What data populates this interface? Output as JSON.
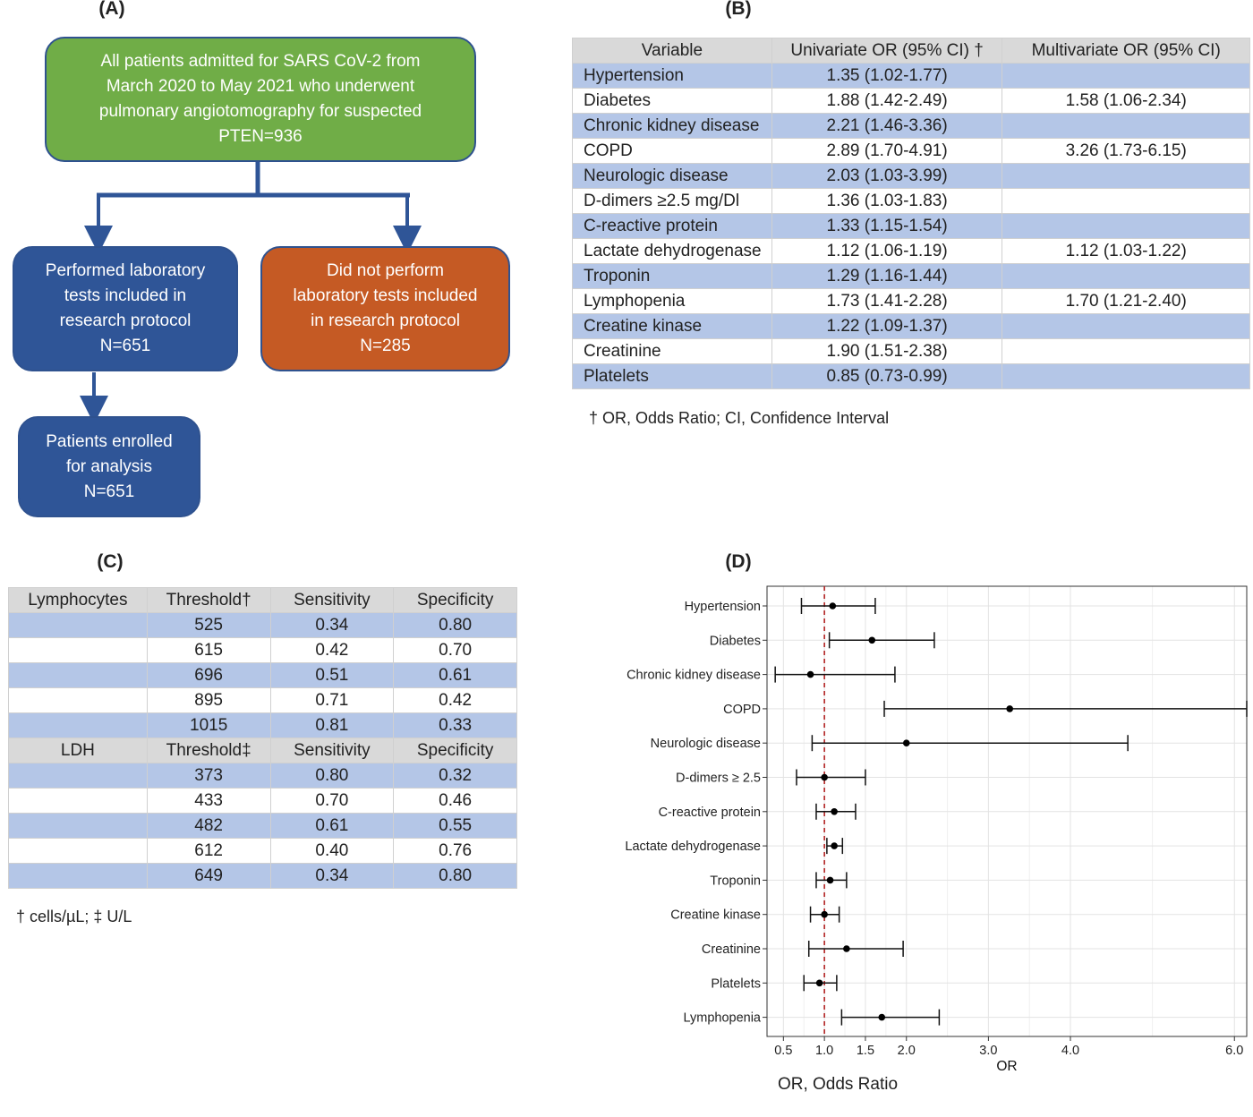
{
  "panels": {
    "a": "(A)",
    "b": "(B)",
    "c": "(C)",
    "d": "(D)"
  },
  "flowchart": {
    "top": [
      "All patients admitted for SARS CoV-2 from",
      "March 2020 to May 2021 who underwent",
      "pulmonary angiotomography for suspected",
      "PTEN=936"
    ],
    "left": [
      "Performed laboratory",
      "tests included in",
      "research protocol",
      "N=651"
    ],
    "right": [
      "Did not perform",
      "laboratory tests included",
      "in research protocol",
      "N=285"
    ],
    "bottom": [
      "Patients enrolled",
      "for analysis",
      "N=651"
    ]
  },
  "table_b": {
    "headers": [
      "Variable",
      "Univariate OR (95% CI) †",
      "Multivariate OR (95% CI)"
    ],
    "rows": [
      [
        "Hypertension",
        "1.35 (1.02-1.77)",
        ""
      ],
      [
        "Diabetes",
        "1.88 (1.42-2.49)",
        "1.58 (1.06-2.34)"
      ],
      [
        "Chronic kidney disease",
        "2.21 (1.46-3.36)",
        ""
      ],
      [
        "COPD",
        "2.89 (1.70-4.91)",
        "3.26 (1.73-6.15)"
      ],
      [
        "Neurologic disease",
        "2.03 (1.03-3.99)",
        ""
      ],
      [
        "D-dimers ≥2.5 mg/Dl",
        "1.36 (1.03-1.83)",
        ""
      ],
      [
        "C-reactive protein",
        "1.33 (1.15-1.54)",
        ""
      ],
      [
        "Lactate dehydrogenase",
        "1.12 (1.06-1.19)",
        "1.12 (1.03-1.22)"
      ],
      [
        "Troponin",
        "1.29 (1.16-1.44)",
        ""
      ],
      [
        "Lymphopenia",
        "1.73 (1.41-2.28)",
        "1.70 (1.21-2.40)"
      ],
      [
        "Creatine kinase",
        "1.22 (1.09-1.37)",
        ""
      ],
      [
        "Creatinine",
        "1.90 (1.51-2.38)",
        ""
      ],
      [
        "Platelets",
        "0.85 (0.73-0.99)",
        ""
      ]
    ],
    "footnote": "† OR, Odds Ratio; CI, Confidence Interval"
  },
  "table_c": {
    "sections": [
      {
        "headers": [
          "Lymphocytes",
          "Threshold†",
          "Sensitivity",
          "Specificity"
        ],
        "rows": [
          [
            "",
            "525",
            "0.34",
            "0.80"
          ],
          [
            "",
            "615",
            "0.42",
            "0.70"
          ],
          [
            "",
            "696",
            "0.51",
            "0.61"
          ],
          [
            "",
            "895",
            "0.71",
            "0.42"
          ],
          [
            "",
            "1015",
            "0.81",
            "0.33"
          ]
        ]
      },
      {
        "headers": [
          "LDH",
          "Threshold‡",
          "Sensitivity",
          "Specificity"
        ],
        "rows": [
          [
            "",
            "373",
            "0.80",
            "0.32"
          ],
          [
            "",
            "433",
            "0.70",
            "0.46"
          ],
          [
            "",
            "482",
            "0.61",
            "0.55"
          ],
          [
            "",
            "612",
            "0.40",
            "0.76"
          ],
          [
            "",
            "649",
            "0.34",
            "0.80"
          ]
        ]
      }
    ],
    "footnote": "† cells/µL; ‡ U/L"
  },
  "chart_data": {
    "type": "scatter",
    "subtype": "forest-plot",
    "xlabel": "OR",
    "caption": "OR, Odds Ratio",
    "x_ticks": [
      "0.5",
      "1.0",
      "1.5",
      "2.0",
      "3.0",
      "4.0",
      "6.0"
    ],
    "x_tick_values": [
      0.5,
      1.0,
      1.5,
      2.0,
      3.0,
      4.0,
      6.0
    ],
    "xlim": [
      0.3,
      6.15
    ],
    "reference_line": 1.0,
    "reference_color": "#b22222",
    "grid": true,
    "rows": [
      {
        "label": "Hypertension",
        "or": 1.1,
        "lo": 0.72,
        "hi": 1.62
      },
      {
        "label": "Diabetes",
        "or": 1.58,
        "lo": 1.06,
        "hi": 2.34
      },
      {
        "label": "Chronic kidney disease",
        "or": 0.83,
        "lo": 0.4,
        "hi": 1.86
      },
      {
        "label": "COPD",
        "or": 3.26,
        "lo": 1.73,
        "hi": 6.15
      },
      {
        "label": "Neurologic disease",
        "or": 2.0,
        "lo": 0.85,
        "hi": 4.7
      },
      {
        "label": "D-dimers ≥ 2.5",
        "or": 1.0,
        "lo": 0.66,
        "hi": 1.5
      },
      {
        "label": "C-reactive protein",
        "or": 1.12,
        "lo": 0.9,
        "hi": 1.38
      },
      {
        "label": "Lactate dehydrogenase",
        "or": 1.12,
        "lo": 1.03,
        "hi": 1.22
      },
      {
        "label": "Troponin",
        "or": 1.07,
        "lo": 0.9,
        "hi": 1.27
      },
      {
        "label": "Creatine kinase",
        "or": 1.0,
        "lo": 0.83,
        "hi": 1.18
      },
      {
        "label": "Creatinine",
        "or": 1.27,
        "lo": 0.81,
        "hi": 1.96
      },
      {
        "label": "Platelets",
        "or": 0.94,
        "lo": 0.75,
        "hi": 1.15
      },
      {
        "label": "Lymphopenia",
        "or": 1.7,
        "lo": 1.21,
        "hi": 2.4
      }
    ]
  }
}
